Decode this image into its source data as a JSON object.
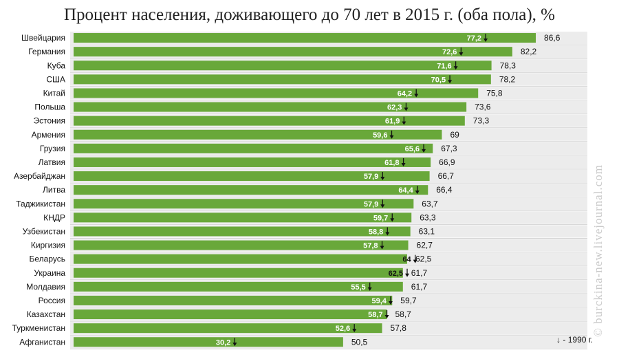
{
  "chart_data": {
    "type": "bar",
    "orientation": "horizontal",
    "title": "Процент населения, доживающего до 70 лет в 2015 г. (оба пола), %",
    "xlim": [
      0,
      100
    ],
    "categories": [
      "Швейцария",
      "Германия",
      "Куба",
      "США",
      "Китай",
      "Польша",
      "Эстония",
      "Армения",
      "Грузия",
      "Латвия",
      "Азербайджан",
      "Литва",
      "Таджикистан",
      "КНДР",
      "Узбекистан",
      "Киргизия",
      "Беларусь",
      "Украина",
      "Молдавия",
      "Россия",
      "Казахстан",
      "Туркменистан",
      "Афганистан"
    ],
    "values_2015": [
      "86,6",
      "82,2",
      "78,3",
      "78,2",
      "75,8",
      "73,6",
      "73,3",
      "69",
      "67,3",
      "66,9",
      "66,7",
      "66,4",
      "63,7",
      "63,3",
      "63,1",
      "62,7",
      "62,5",
      "61,7",
      "61,7",
      "59,7",
      "58,7",
      "57,8",
      "50,5"
    ],
    "values_1990": [
      "77,2",
      "72,6",
      "71,6",
      "70,5",
      "64,2",
      "62,3",
      "61,9",
      "59,6",
      "65,6",
      "61,8",
      "57,9",
      "64,4",
      "57,9",
      "59,7",
      "58,8",
      "57,8",
      "64",
      "62,5",
      "55,5",
      "59,4",
      "58,7",
      "52,6",
      "30,2"
    ],
    "bar_color": "#69a83a",
    "legend": {
      "marker": "↓",
      "label": "- 1990 г.",
      "position": "bottom-right"
    }
  },
  "watermark": "© burckina-new.livejournal.com"
}
